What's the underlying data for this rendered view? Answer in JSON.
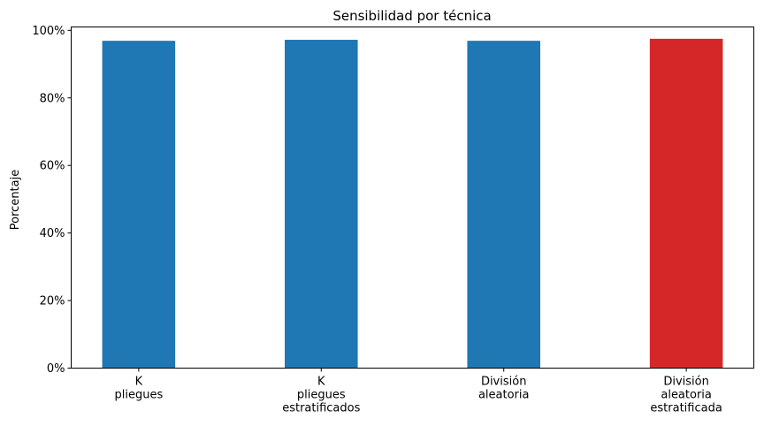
{
  "chart_data": {
    "type": "bar",
    "title": "Sensibilidad por técnica",
    "xlabel": "",
    "ylabel": "Porcentaje",
    "categories": [
      [
        "K",
        "pliegues"
      ],
      [
        "K",
        "pliegues",
        "estratificados"
      ],
      [
        "División",
        "aleatoria"
      ],
      [
        "División",
        "aleatoria",
        "estratificada"
      ]
    ],
    "values": [
      96.9,
      97.2,
      96.9,
      97.5
    ],
    "bar_colors": [
      "#1f77b4",
      "#1f77b4",
      "#1f77b4",
      "#d62728"
    ],
    "ylim": [
      0,
      101
    ],
    "yticks": [
      0,
      20,
      40,
      60,
      80,
      100
    ],
    "ytick_labels": [
      "0%",
      "20%",
      "40%",
      "60%",
      "80%",
      "100%"
    ],
    "grid": false,
    "legend": "none"
  }
}
